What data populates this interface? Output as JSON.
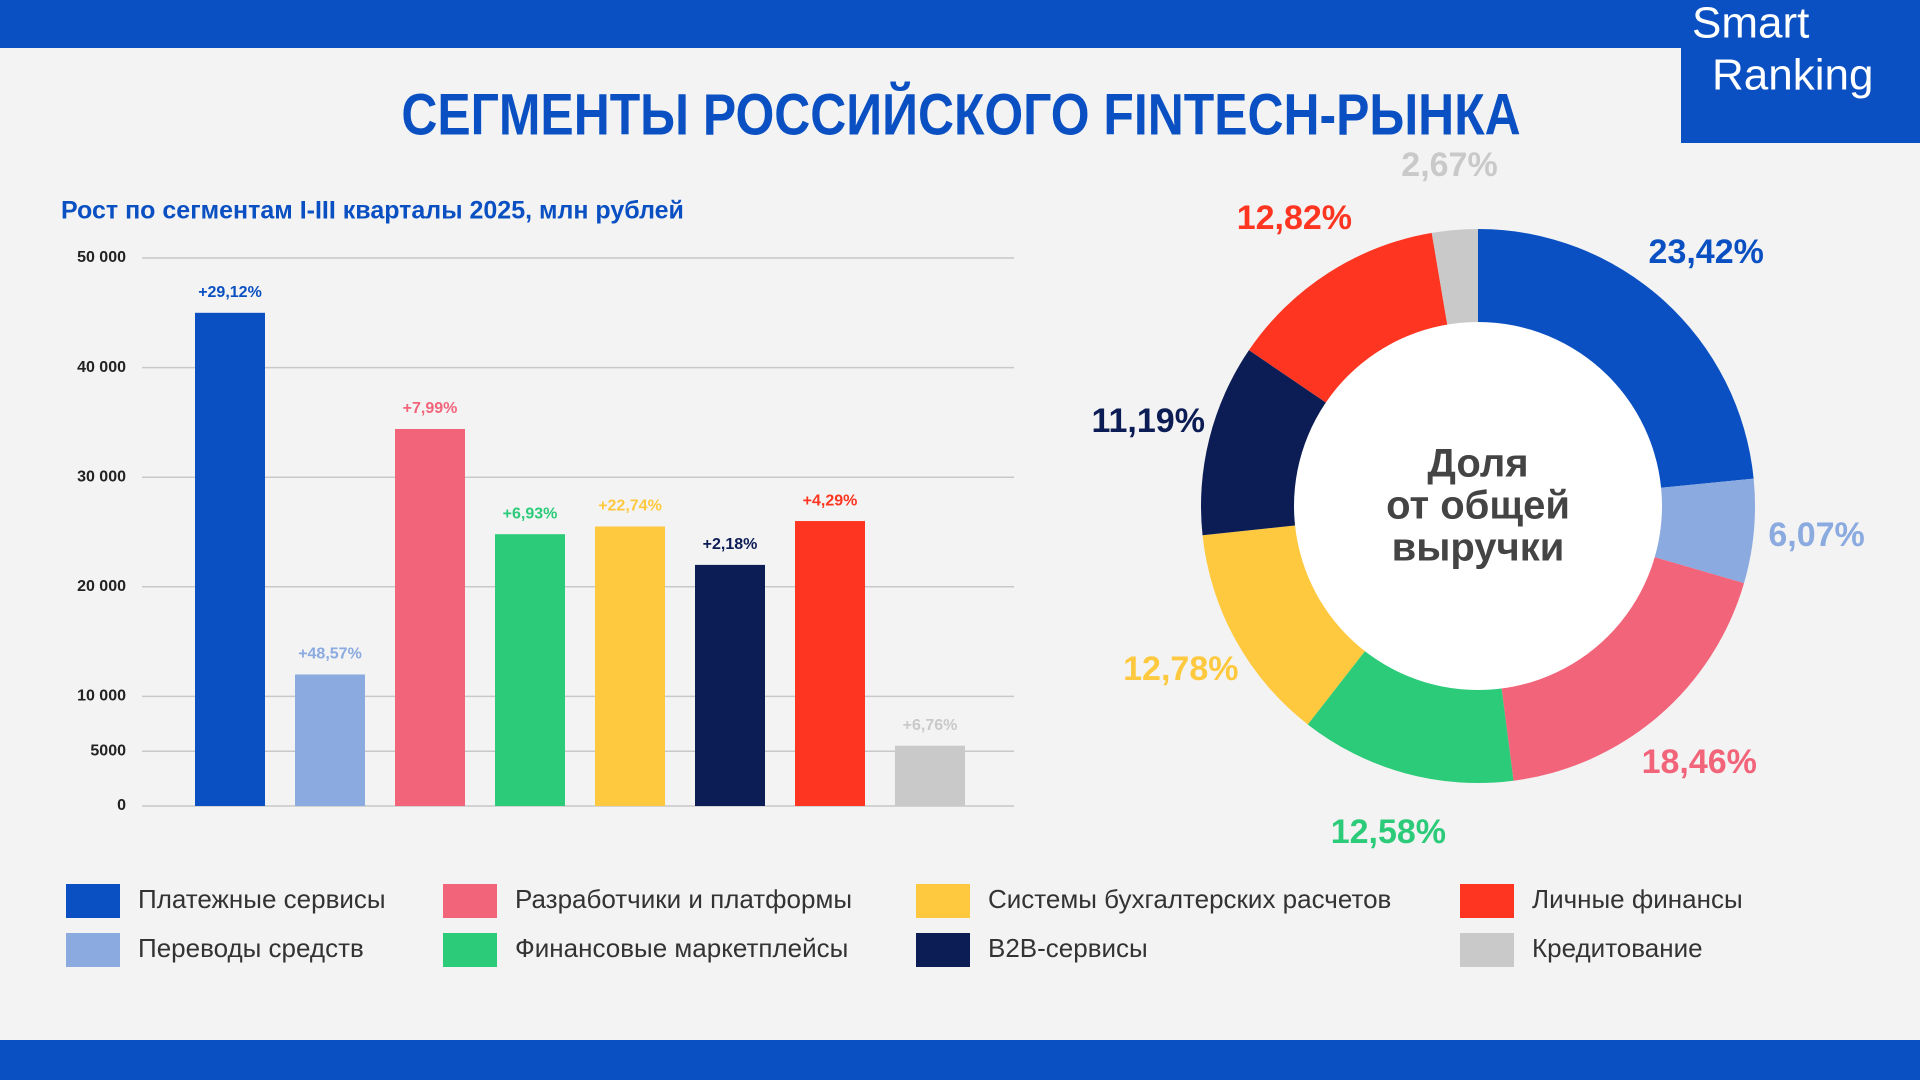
{
  "header": {
    "title": "СЕГМЕНТЫ РОССИЙСКОГО FINTECH-РЫНКА",
    "logo": [
      "Smart",
      "Ranking"
    ]
  },
  "chart_data": [
    {
      "type": "bar",
      "title": "Рост по сегментам I-III кварталы 2025, млн рублей",
      "categories": [
        "Платежные сервисы",
        "Переводы средств",
        "Разработчики и платформы",
        "Финансовые маркетплейсы",
        "Системы бухгалтерских расчетов",
        "B2B-сервисы",
        "Личные финансы",
        "Кредитование"
      ],
      "colors": [
        "#0a50c2",
        "#8aaae0",
        "#f2647a",
        "#2ccb79",
        "#fec93e",
        "#0c1d56",
        "#fe3521",
        "#c9c9c9"
      ],
      "values": [
        45000,
        12000,
        34400,
        24800,
        25500,
        22000,
        26000,
        5500
      ],
      "growth_labels": [
        "+29,12%",
        "+48,57%",
        "+7,99%",
        "+6,93%",
        "+22,74%",
        "+2,18%",
        "+4,29%",
        "+6,76%"
      ],
      "ylim": [
        0,
        50000
      ],
      "yticks": [
        0,
        5000,
        {
          "value": 10000,
          "label": "10 000"
        },
        {
          "value": 20000,
          "label": "20 000"
        },
        {
          "value": 30000,
          "label": "30 000"
        },
        {
          "value": 40000,
          "label": "40 000"
        },
        {
          "value": 50000,
          "label": "50 000"
        }
      ],
      "grid": true
    },
    {
      "type": "pie",
      "center_label": [
        "Доля",
        "от общей",
        "выручки"
      ],
      "values": [
        23.42,
        6.07,
        18.46,
        12.58,
        12.78,
        11.19,
        12.82,
        2.67
      ],
      "value_labels": [
        "23,42%",
        "6,07%",
        "18,46%",
        "12,58%",
        "12,78%",
        "11,19%",
        "12,82%",
        "2,67%"
      ],
      "colors": [
        "#0a50c2",
        "#8aaae0",
        "#f2647a",
        "#2ccb79",
        "#fec93e",
        "#0c1d56",
        "#fe3521",
        "#c9c9c9"
      ]
    }
  ]
}
